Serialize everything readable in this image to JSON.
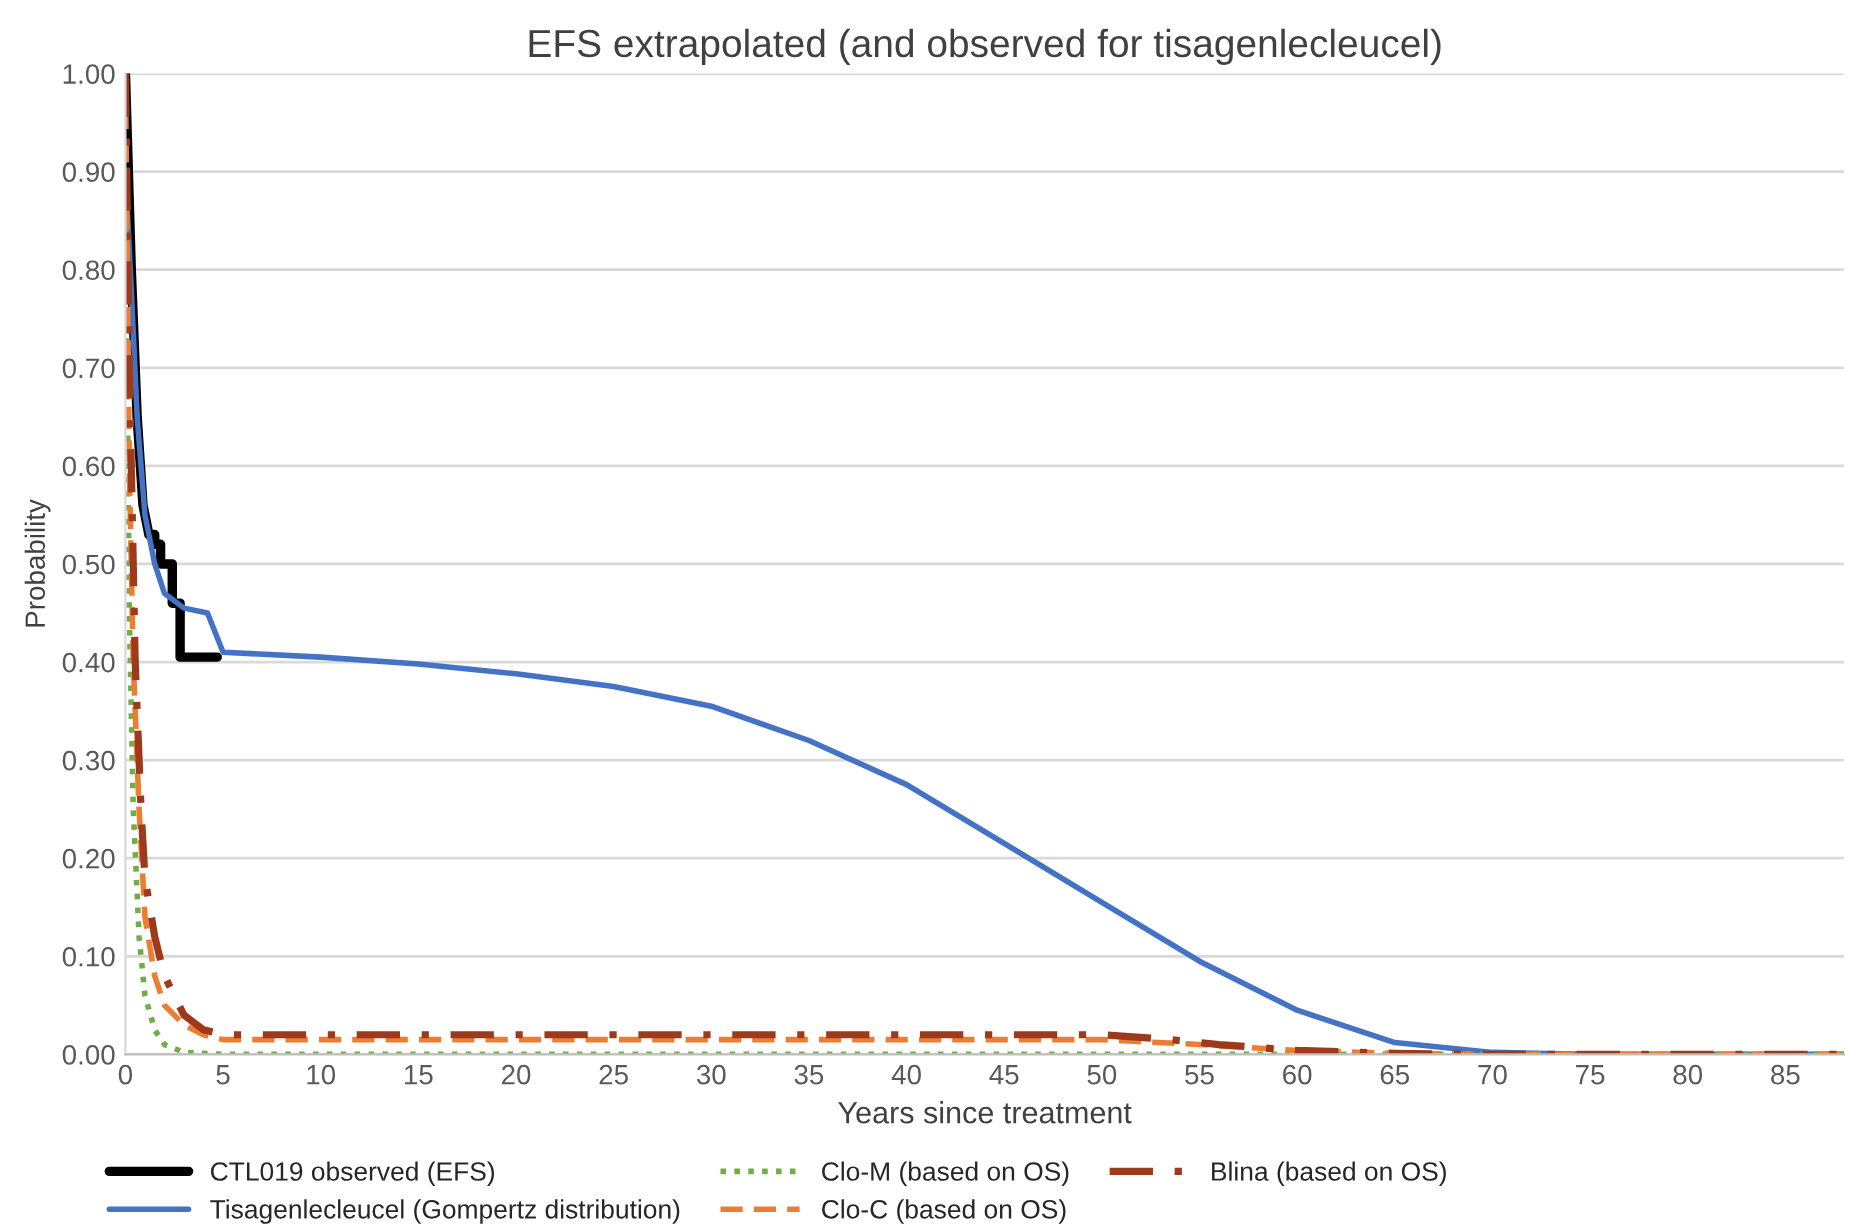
{
  "chart_data": {
    "type": "line",
    "title": "EFS extrapolated (and observed for tisagenlecleucel)",
    "xlabel": "Years since treatment",
    "ylabel": "Probability",
    "xlim": [
      0,
      88
    ],
    "xticks": [
      0,
      5,
      10,
      15,
      20,
      25,
      30,
      35,
      40,
      45,
      50,
      55,
      60,
      65,
      70,
      75,
      80,
      85
    ],
    "ylim": [
      0,
      1
    ],
    "yticks": [
      {
        "value": 0,
        "label": "0.00"
      },
      {
        "value": 0.1,
        "label": "0.10"
      },
      {
        "value": 0.2,
        "label": "0.20"
      },
      {
        "value": 0.3,
        "label": "0.30"
      },
      {
        "value": 0.4,
        "label": "0.40"
      },
      {
        "value": 0.5,
        "label": "0.50"
      },
      {
        "value": 0.6,
        "label": "0.60"
      },
      {
        "value": 0.7,
        "label": "0.70"
      },
      {
        "value": 0.8,
        "label": "0.80"
      },
      {
        "value": 0.9,
        "label": "0.90"
      },
      {
        "value": 1,
        "label": "1.00"
      }
    ],
    "grid": "y",
    "legend": "bottom",
    "marker": "none",
    "series": [
      {
        "name": "CTL019 observed (EFS)",
        "color": "#000000",
        "line_style": "solid",
        "x": [
          0,
          0.3,
          0.6,
          0.9,
          1.2,
          1.5,
          1.5,
          1.8,
          1.8,
          2.4,
          2.4,
          2.8,
          2.8,
          4.7
        ],
        "values": [
          1,
          0.8,
          0.65,
          0.56,
          0.53,
          0.53,
          0.52,
          0.52,
          0.5,
          0.5,
          0.46,
          0.46,
          0.405,
          0.405
        ]
      },
      {
        "name": "Tisagenlecleucel (Gompertz distribution)",
        "color": "#4472c4",
        "line_style": "solid",
        "x": [
          0,
          0.3,
          0.6,
          1.0,
          1.5,
          2,
          3,
          4.2,
          5,
          10,
          15,
          20,
          25,
          30,
          35,
          40,
          45,
          50,
          55,
          60,
          65,
          70,
          75,
          88
        ],
        "values": [
          0.9,
          0.78,
          0.65,
          0.55,
          0.5,
          0.47,
          0.455,
          0.45,
          0.41,
          0.405,
          0.398,
          0.388,
          0.375,
          0.355,
          0.32,
          0.275,
          0.215,
          0.155,
          0.095,
          0.045,
          0.012,
          0.002,
          0,
          0
        ]
      },
      {
        "name": "Clo-M (based on OS)",
        "color": "#70ad47",
        "line_style": "dotted",
        "x": [
          0,
          0.2,
          0.4,
          0.7,
          1,
          1.5,
          2,
          3,
          5,
          88
        ],
        "values": [
          0.9,
          0.45,
          0.25,
          0.12,
          0.06,
          0.025,
          0.01,
          0.002,
          0,
          0
        ]
      },
      {
        "name": "Clo-C (based on OS)",
        "color": "#ed7d31",
        "line_style": "dashed",
        "x": [
          0,
          0.2,
          0.4,
          0.7,
          1,
          1.5,
          2,
          3,
          4,
          5,
          50,
          55,
          60,
          65,
          70,
          88
        ],
        "values": [
          1,
          0.6,
          0.4,
          0.25,
          0.14,
          0.08,
          0.05,
          0.03,
          0.02,
          0.015,
          0.015,
          0.01,
          0.004,
          0.001,
          0,
          0
        ]
      },
      {
        "name": "Blina (based on OS)",
        "color": "#9e3a1c",
        "line_style": "dashdot",
        "x": [
          0,
          0.2,
          0.5,
          0.8,
          1,
          1.5,
          2,
          3,
          4,
          5,
          50,
          53,
          56,
          60,
          65,
          70,
          88
        ],
        "values": [
          1,
          0.7,
          0.4,
          0.25,
          0.18,
          0.12,
          0.08,
          0.04,
          0.025,
          0.02,
          0.02,
          0.016,
          0.01,
          0.004,
          0.001,
          0,
          0
        ]
      }
    ]
  }
}
